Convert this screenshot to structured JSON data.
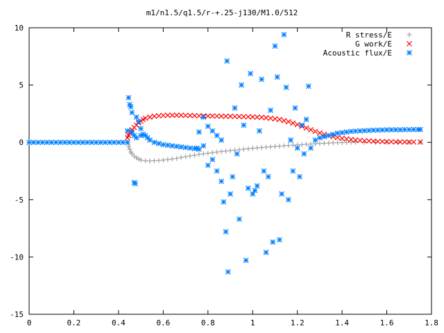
{
  "chart_data": {
    "type": "scatter",
    "title": "m1/n1.5/q1.5/r-+.25-j130/M1.0/512",
    "xlabel": "",
    "ylabel": "",
    "xlim": [
      0,
      1.8
    ],
    "ylim": [
      -15,
      10
    ],
    "xticks": [
      0,
      0.2,
      0.4,
      0.6,
      0.8,
      1,
      1.2,
      1.4,
      1.6,
      1.8
    ],
    "xtick_labels": [
      "0",
      "0.2",
      "0.4",
      "0.6",
      "0.8",
      "1",
      "1.2",
      "1.4",
      "1.6",
      "1.8"
    ],
    "yticks": [
      -15,
      -10,
      -5,
      0,
      5,
      10
    ],
    "ytick_labels": [
      "-15",
      "-10",
      "-5",
      "0",
      "5",
      "10"
    ],
    "grid": false,
    "legend_position": "top-right",
    "series": [
      {
        "name": "R stress/E",
        "color": "#a0a0a0",
        "marker": "plus",
        "points": [
          [
            0.44,
            0.0
          ],
          [
            0.445,
            -0.35
          ],
          [
            0.45,
            -0.6
          ],
          [
            0.455,
            -0.85
          ],
          [
            0.46,
            -1.0
          ],
          [
            0.47,
            -1.2
          ],
          [
            0.48,
            -1.35
          ],
          [
            0.49,
            -1.45
          ],
          [
            0.5,
            -1.55
          ],
          [
            0.52,
            -1.6
          ],
          [
            0.54,
            -1.62
          ],
          [
            0.56,
            -1.6
          ],
          [
            0.58,
            -1.58
          ],
          [
            0.6,
            -1.55
          ],
          [
            0.62,
            -1.5
          ],
          [
            0.64,
            -1.45
          ],
          [
            0.66,
            -1.4
          ],
          [
            0.68,
            -1.32
          ],
          [
            0.7,
            -1.25
          ],
          [
            0.72,
            -1.18
          ],
          [
            0.74,
            -1.12
          ],
          [
            0.76,
            -1.05
          ],
          [
            0.78,
            -1.0
          ],
          [
            0.8,
            -0.95
          ],
          [
            0.82,
            -0.9
          ],
          [
            0.84,
            -0.85
          ],
          [
            0.86,
            -0.8
          ],
          [
            0.88,
            -0.76
          ],
          [
            0.9,
            -0.72
          ],
          [
            0.92,
            -0.68
          ],
          [
            0.94,
            -0.64
          ],
          [
            0.96,
            -0.6
          ],
          [
            0.98,
            -0.56
          ],
          [
            1.0,
            -0.52
          ],
          [
            1.02,
            -0.48
          ],
          [
            1.04,
            -0.45
          ],
          [
            1.06,
            -0.42
          ],
          [
            1.08,
            -0.39
          ],
          [
            1.1,
            -0.36
          ],
          [
            1.12,
            -0.33
          ],
          [
            1.14,
            -0.3
          ],
          [
            1.16,
            -0.27
          ],
          [
            1.18,
            -0.25
          ],
          [
            1.2,
            -0.22
          ],
          [
            1.22,
            -0.2
          ],
          [
            1.24,
            -0.17
          ],
          [
            1.26,
            -0.15
          ],
          [
            1.28,
            -0.12
          ],
          [
            1.3,
            -0.1
          ],
          [
            1.32,
            -0.08
          ],
          [
            1.34,
            -0.06
          ],
          [
            1.36,
            -0.04
          ],
          [
            1.38,
            -0.03
          ],
          [
            1.4,
            -0.02
          ],
          [
            1.42,
            -0.01
          ],
          [
            1.44,
            0.0
          ],
          [
            1.46,
            0.0
          ],
          [
            1.5,
            0.0
          ],
          [
            1.55,
            0.0
          ],
          [
            1.6,
            0.0
          ],
          [
            1.65,
            0.0
          ],
          [
            1.7,
            0.0
          ],
          [
            1.75,
            0.0
          ]
        ]
      },
      {
        "name": "G work/E",
        "color": "#ff0000",
        "marker": "cross",
        "points": [
          [
            0.44,
            0.4
          ],
          [
            0.445,
            0.6
          ],
          [
            0.45,
            0.8
          ],
          [
            0.455,
            0.95
          ],
          [
            0.46,
            1.1
          ],
          [
            0.47,
            1.3
          ],
          [
            0.48,
            1.5
          ],
          [
            0.49,
            1.7
          ],
          [
            0.5,
            1.85
          ],
          [
            0.51,
            2.0
          ],
          [
            0.52,
            2.1
          ],
          [
            0.54,
            2.2
          ],
          [
            0.56,
            2.28
          ],
          [
            0.58,
            2.32
          ],
          [
            0.6,
            2.35
          ],
          [
            0.62,
            2.36
          ],
          [
            0.64,
            2.37
          ],
          [
            0.66,
            2.37
          ],
          [
            0.68,
            2.36
          ],
          [
            0.7,
            2.35
          ],
          [
            0.72,
            2.34
          ],
          [
            0.74,
            2.33
          ],
          [
            0.76,
            2.32
          ],
          [
            0.78,
            2.31
          ],
          [
            0.8,
            2.3
          ],
          [
            0.82,
            2.3
          ],
          [
            0.84,
            2.29
          ],
          [
            0.86,
            2.28
          ],
          [
            0.88,
            2.28
          ],
          [
            0.9,
            2.27
          ],
          [
            0.92,
            2.26
          ],
          [
            0.94,
            2.25
          ],
          [
            0.96,
            2.24
          ],
          [
            0.98,
            2.23
          ],
          [
            1.0,
            2.22
          ],
          [
            1.02,
            2.2
          ],
          [
            1.04,
            2.18
          ],
          [
            1.06,
            2.15
          ],
          [
            1.08,
            2.1
          ],
          [
            1.1,
            2.05
          ],
          [
            1.12,
            2.0
          ],
          [
            1.14,
            1.9
          ],
          [
            1.16,
            1.8
          ],
          [
            1.18,
            1.68
          ],
          [
            1.2,
            1.55
          ],
          [
            1.22,
            1.4
          ],
          [
            1.24,
            1.25
          ],
          [
            1.26,
            1.1
          ],
          [
            1.28,
            0.95
          ],
          [
            1.3,
            0.82
          ],
          [
            1.32,
            0.7
          ],
          [
            1.34,
            0.6
          ],
          [
            1.36,
            0.5
          ],
          [
            1.38,
            0.42
          ],
          [
            1.4,
            0.35
          ],
          [
            1.42,
            0.3
          ],
          [
            1.44,
            0.25
          ],
          [
            1.46,
            0.2
          ],
          [
            1.48,
            0.17
          ],
          [
            1.5,
            0.14
          ],
          [
            1.52,
            0.12
          ],
          [
            1.54,
            0.1
          ],
          [
            1.56,
            0.08
          ],
          [
            1.58,
            0.07
          ],
          [
            1.6,
            0.06
          ],
          [
            1.62,
            0.05
          ],
          [
            1.64,
            0.04
          ],
          [
            1.66,
            0.04
          ],
          [
            1.68,
            0.03
          ],
          [
            1.7,
            0.03
          ],
          [
            1.72,
            0.03
          ],
          [
            1.75,
            0.03
          ]
        ]
      },
      {
        "name": "Acoustic flux/E",
        "color": "#0080ff",
        "marker": "star",
        "points": [
          [
            0.0,
            0.0
          ],
          [
            0.02,
            0.0
          ],
          [
            0.04,
            0.0
          ],
          [
            0.06,
            0.0
          ],
          [
            0.08,
            0.0
          ],
          [
            0.1,
            0.0
          ],
          [
            0.12,
            0.0
          ],
          [
            0.14,
            0.0
          ],
          [
            0.16,
            0.0
          ],
          [
            0.18,
            0.0
          ],
          [
            0.2,
            0.0
          ],
          [
            0.22,
            0.0
          ],
          [
            0.24,
            0.0
          ],
          [
            0.26,
            0.0
          ],
          [
            0.28,
            0.0
          ],
          [
            0.3,
            0.0
          ],
          [
            0.32,
            0.0
          ],
          [
            0.34,
            0.0
          ],
          [
            0.36,
            0.0
          ],
          [
            0.38,
            0.0
          ],
          [
            0.4,
            0.0
          ],
          [
            0.42,
            0.0
          ],
          [
            0.44,
            0.0
          ],
          [
            0.44,
            1.0
          ],
          [
            0.445,
            3.9
          ],
          [
            0.45,
            3.3
          ],
          [
            0.455,
            3.1
          ],
          [
            0.46,
            2.6
          ],
          [
            0.47,
            -3.5
          ],
          [
            0.475,
            -3.6
          ],
          [
            0.48,
            2.2
          ],
          [
            0.49,
            1.8
          ],
          [
            0.5,
            1.2
          ],
          [
            0.46,
            0.9
          ],
          [
            0.47,
            0.6
          ],
          [
            0.48,
            0.4
          ],
          [
            0.5,
            0.6
          ],
          [
            0.51,
            0.7
          ],
          [
            0.52,
            0.6
          ],
          [
            0.53,
            0.4
          ],
          [
            0.54,
            0.2
          ],
          [
            0.56,
            0.0
          ],
          [
            0.58,
            -0.1
          ],
          [
            0.6,
            -0.2
          ],
          [
            0.62,
            -0.25
          ],
          [
            0.64,
            -0.3
          ],
          [
            0.66,
            -0.35
          ],
          [
            0.68,
            -0.4
          ],
          [
            0.7,
            -0.45
          ],
          [
            0.72,
            -0.5
          ],
          [
            0.74,
            -0.55
          ],
          [
            0.75,
            -0.5
          ],
          [
            0.76,
            -0.6
          ],
          [
            0.78,
            -0.3
          ],
          [
            0.8,
            1.4
          ],
          [
            0.82,
            1.0
          ],
          [
            0.84,
            0.6
          ],
          [
            0.86,
            0.2
          ],
          [
            0.76,
            0.9
          ],
          [
            0.78,
            2.2
          ],
          [
            0.8,
            -2.0
          ],
          [
            0.82,
            -1.5
          ],
          [
            0.84,
            -2.5
          ],
          [
            0.86,
            -3.4
          ],
          [
            0.87,
            -5.2
          ],
          [
            0.88,
            -7.8
          ],
          [
            0.885,
            7.1
          ],
          [
            0.89,
            -11.3
          ],
          [
            0.9,
            -4.5
          ],
          [
            0.91,
            -3.0
          ],
          [
            0.92,
            3.0
          ],
          [
            0.93,
            -1.0
          ],
          [
            0.94,
            -6.7
          ],
          [
            0.95,
            5.0
          ],
          [
            0.96,
            1.5
          ],
          [
            0.97,
            -10.3
          ],
          [
            0.98,
            -4.0
          ],
          [
            0.99,
            6.0
          ],
          [
            1.0,
            -4.5
          ],
          [
            1.01,
            -4.2
          ],
          [
            1.02,
            -3.8
          ],
          [
            1.03,
            1.0
          ],
          [
            1.04,
            5.5
          ],
          [
            1.05,
            -2.5
          ],
          [
            1.06,
            -9.6
          ],
          [
            1.07,
            -3.0
          ],
          [
            1.08,
            2.8
          ],
          [
            1.09,
            -8.7
          ],
          [
            1.1,
            8.4
          ],
          [
            1.11,
            5.7
          ],
          [
            1.12,
            -8.5
          ],
          [
            1.13,
            -4.5
          ],
          [
            1.14,
            9.4
          ],
          [
            1.15,
            4.8
          ],
          [
            1.16,
            -5.0
          ],
          [
            1.17,
            0.2
          ],
          [
            1.18,
            -2.5
          ],
          [
            1.19,
            3.0
          ],
          [
            1.2,
            -0.5
          ],
          [
            1.21,
            -3.0
          ],
          [
            1.22,
            1.5
          ],
          [
            1.23,
            -1.0
          ],
          [
            1.24,
            2.0
          ],
          [
            1.25,
            4.9
          ],
          [
            1.26,
            -0.5
          ],
          [
            1.28,
            0.2
          ],
          [
            1.3,
            0.4
          ],
          [
            1.32,
            0.5
          ],
          [
            1.34,
            0.6
          ],
          [
            1.36,
            0.7
          ],
          [
            1.38,
            0.8
          ],
          [
            1.4,
            0.85
          ],
          [
            1.42,
            0.9
          ],
          [
            1.44,
            0.95
          ],
          [
            1.46,
            0.98
          ],
          [
            1.48,
            1.0
          ],
          [
            1.5,
            1.02
          ],
          [
            1.52,
            1.04
          ],
          [
            1.54,
            1.06
          ],
          [
            1.56,
            1.07
          ],
          [
            1.58,
            1.08
          ],
          [
            1.6,
            1.09
          ],
          [
            1.62,
            1.1
          ],
          [
            1.64,
            1.1
          ],
          [
            1.66,
            1.1
          ],
          [
            1.68,
            1.11
          ],
          [
            1.7,
            1.11
          ],
          [
            1.72,
            1.12
          ],
          [
            1.74,
            1.12
          ],
          [
            1.75,
            1.12
          ]
        ]
      }
    ]
  }
}
